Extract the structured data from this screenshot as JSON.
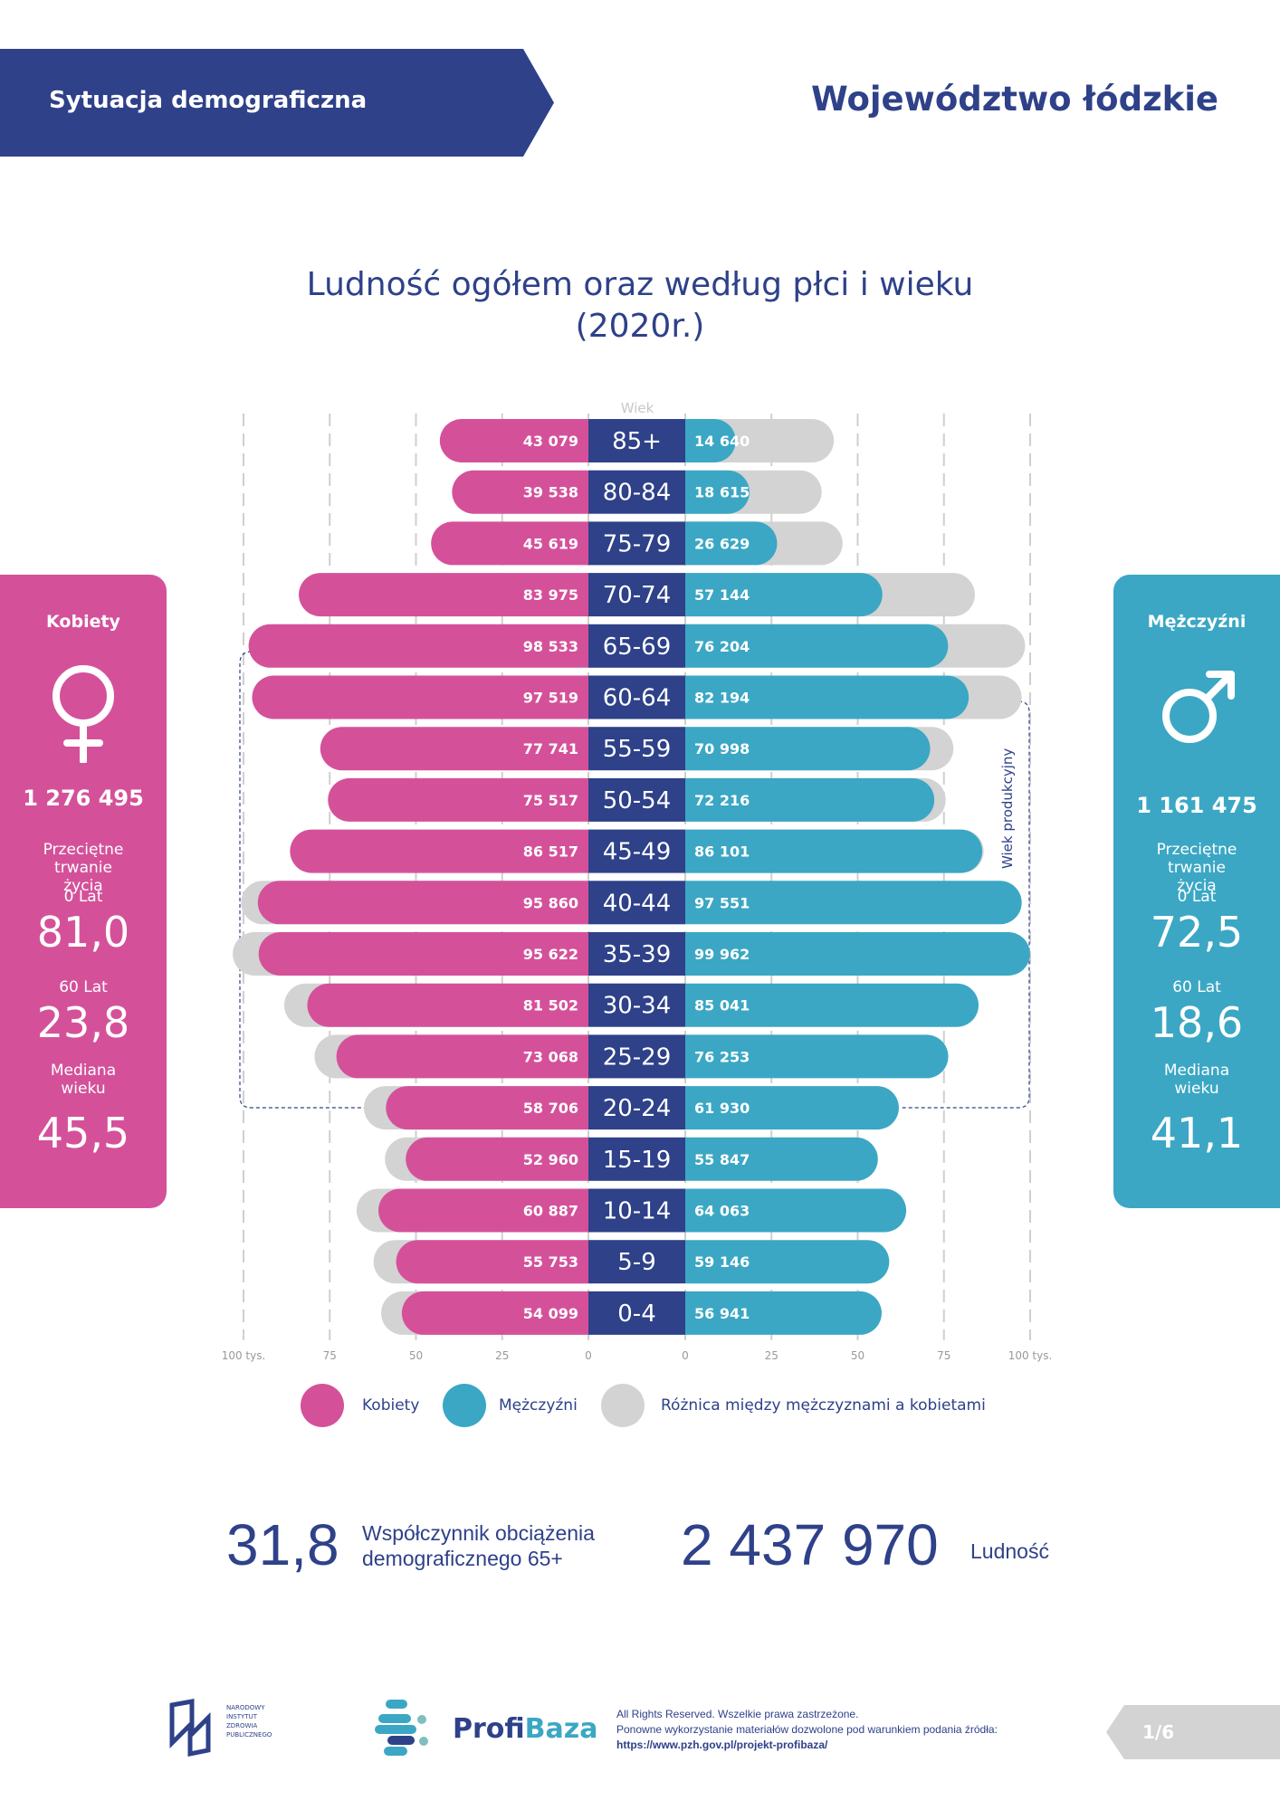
{
  "header": {
    "section": "Sytuacja demograficzna",
    "region": "Województwo łódzkie"
  },
  "colors": {
    "female": "#d4519a",
    "male": "#3ba7c4",
    "difference": "#d3d3d3",
    "navy": "#2e4189"
  },
  "chart_data": {
    "type": "bar",
    "title": "Ludność ogółem oraz według płci i wieku",
    "subtitle": "(2020r.)",
    "center_label": "Wiek",
    "bracket_label": "Wiek produkcyjny",
    "categories": [
      "85+",
      "80-84",
      "75-79",
      "70-74",
      "65-69",
      "60-64",
      "55-59",
      "50-54",
      "45-49",
      "40-44",
      "35-39",
      "30-34",
      "25-29",
      "20-24",
      "15-19",
      "10-14",
      "5-9",
      "0-4"
    ],
    "series": [
      {
        "name": "Kobiety",
        "values": [
          43079,
          39538,
          45619,
          83975,
          98533,
          97519,
          77741,
          75517,
          86517,
          95860,
          95622,
          81502,
          73068,
          58706,
          52960,
          60887,
          55753,
          54099
        ],
        "labels": [
          "43 079",
          "39 538",
          "45 619",
          "83 975",
          "98 533",
          "97 519",
          "77 741",
          "75 517",
          "86 517",
          "95 860",
          "95 622",
          "81 502",
          "73 068",
          "58 706",
          "52 960",
          "60 887",
          "55 753",
          "54 099"
        ]
      },
      {
        "name": "Mężczyźni",
        "values": [
          14640,
          18615,
          26629,
          57144,
          76204,
          82194,
          70998,
          72216,
          86101,
          97551,
          99962,
          85041,
          76253,
          61930,
          55847,
          64063,
          59146,
          56941
        ],
        "labels": [
          "14 640",
          "18 615",
          "26 629",
          "57 144",
          "76 204",
          "82 194",
          "70 998",
          "72 216",
          "86 101",
          "97 551",
          "99 962",
          "85 041",
          "76 253",
          "61 930",
          "55 847",
          "64 063",
          "59 146",
          "56 941"
        ]
      }
    ],
    "difference_name": "Różnica między mężczyznami a kobietami",
    "xlim": [
      0,
      100000
    ],
    "ticks_left": [
      "100 tys.",
      "75",
      "50",
      "25",
      "0"
    ],
    "ticks_right": [
      "0",
      "25",
      "50",
      "75",
      "100 tys."
    ],
    "grid": true,
    "legend_position": "bottom"
  },
  "female_panel": {
    "title": "Kobiety",
    "total": "1 276 495",
    "life_label": "Przeciętne trwanie życia",
    "age0_label": "0 Lat",
    "age0": "81,0",
    "age60_label": "60 Lat",
    "age60": "23,8",
    "median_label": "Mediana wieku",
    "median": "45,5"
  },
  "male_panel": {
    "title": "Mężczyźni",
    "total": "1 161 475",
    "life_label": "Przeciętne trwanie życia",
    "age0_label": "0 Lat",
    "age0": "72,5",
    "age60_label": "60 Lat",
    "age60": "18,6",
    "median_label": "Mediana wieku",
    "median": "41,1"
  },
  "legend": {
    "female": "Kobiety",
    "male": "Mężczyźni",
    "difference": "Różnica między mężczyznami a kobietami"
  },
  "stats": {
    "ratio": "31,8",
    "ratio_label": "Współczynnik obciążenia demograficznego 65+",
    "population": "2 437 970",
    "population_label": "Ludność"
  },
  "footer": {
    "nizp_logo": "Narodowy Instytut Zdrowia Publicznego Państwowy Instytut Badawczy",
    "profibaza_a": "Profi",
    "profibaza_b": "Baza",
    "rights": "All Rights Reserved. Wszelkie prawa zastrzeżone.",
    "reuse": "Ponowne wykorzystanie materiałów dozwolone pod warunkiem podania źródła:",
    "url": "https://www.pzh.gov.pl/projekt-profibaza/",
    "page": "1/6"
  }
}
